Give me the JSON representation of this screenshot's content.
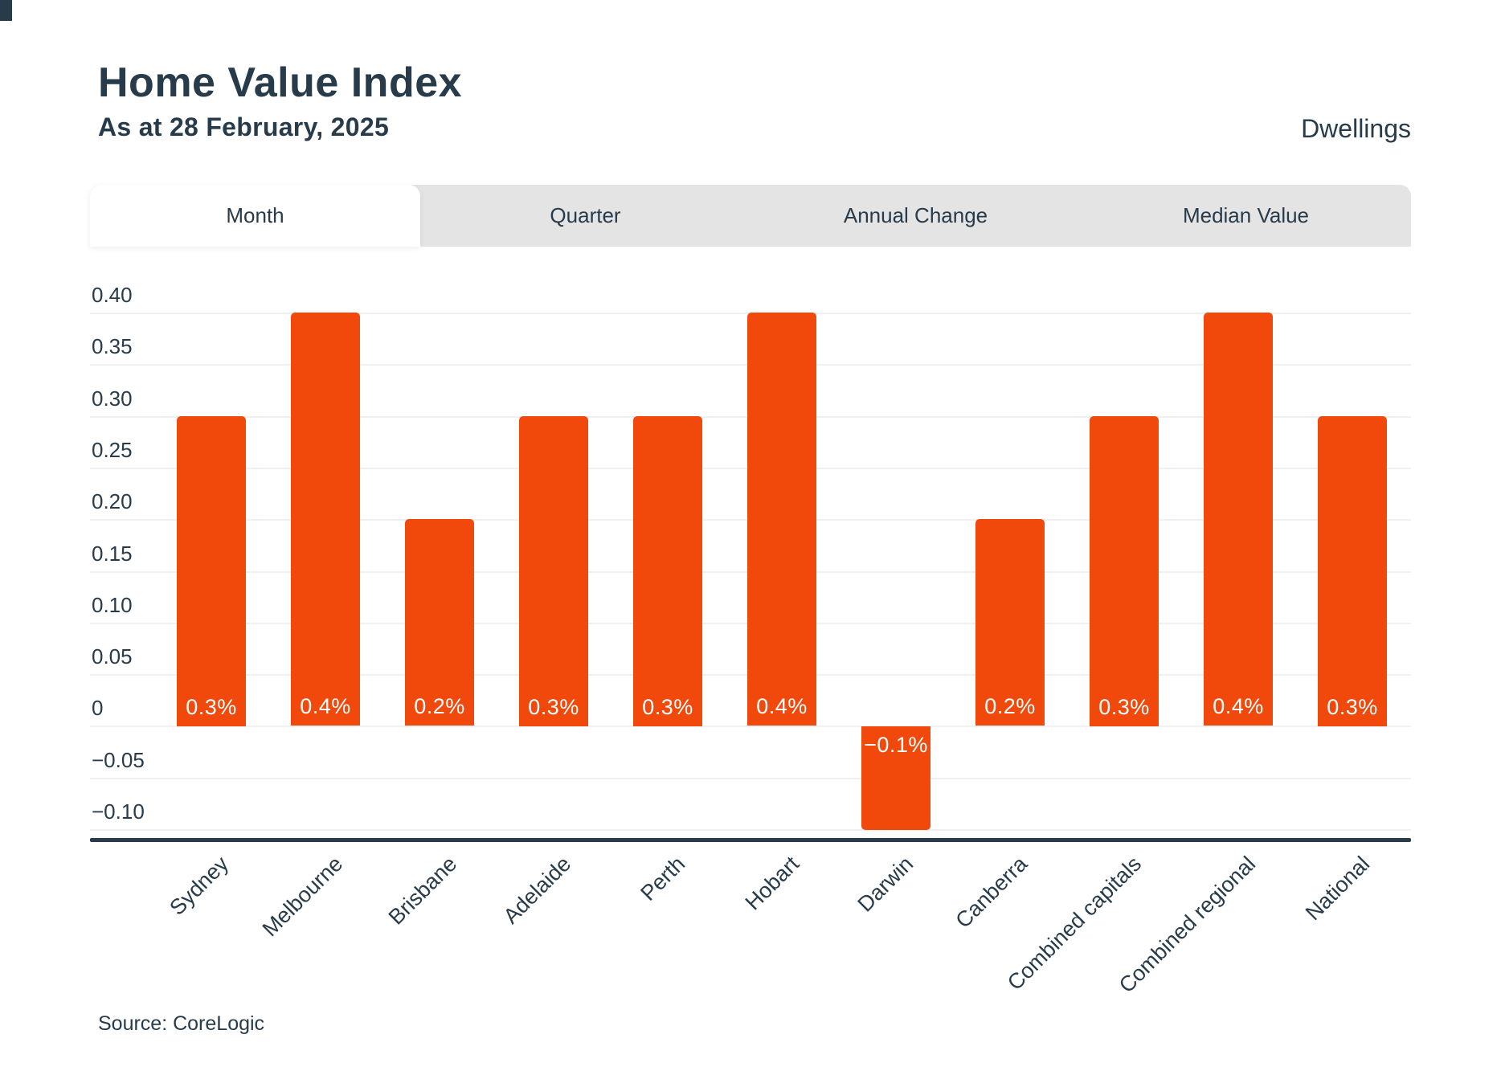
{
  "page": {
    "title": "Home Value Index",
    "subtitle": "As at 28 February, 2025",
    "right_label": "Dwellings",
    "source": "Source: CoreLogic"
  },
  "tabs": [
    {
      "label": "Month",
      "active": true
    },
    {
      "label": "Quarter",
      "active": false
    },
    {
      "label": "Annual Change",
      "active": false
    },
    {
      "label": "Median Value",
      "active": false
    }
  ],
  "colors": {
    "accent": "#F1490B",
    "text": "#273B4A",
    "tab_bg": "#E4E4E4",
    "gridline": "#F0F0F0",
    "axis": "#273B4A",
    "bar_label": "#FFFFFF"
  },
  "chart_data": {
    "type": "bar",
    "title": "Home Value Index",
    "subtitle": "As at 28 February, 2025",
    "series_name": "Dwellings — monthly change (%)",
    "categories": [
      "Sydney",
      "Melbourne",
      "Brisbane",
      "Adelaide",
      "Perth",
      "Hobart",
      "Darwin",
      "Canberra",
      "Combined capitals",
      "Combined regional",
      "National"
    ],
    "values": [
      0.3,
      0.4,
      0.2,
      0.3,
      0.3,
      0.4,
      -0.1,
      0.2,
      0.3,
      0.4,
      0.3
    ],
    "bar_labels": [
      "0.3%",
      "0.4%",
      "0.2%",
      "0.3%",
      "0.3%",
      "0.4%",
      "−0.1%",
      "0.2%",
      "0.3%",
      "0.4%",
      "0.3%"
    ],
    "yticks": [
      0.4,
      0.35,
      0.3,
      0.25,
      0.2,
      0.15,
      0.1,
      0.05,
      0,
      -0.05,
      -0.1
    ],
    "ytick_labels": [
      "0.40",
      "0.35",
      "0.30",
      "0.25",
      "0.20",
      "0.15",
      "0.10",
      "0.05",
      "0",
      "−0.05",
      "−0.10"
    ],
    "ylim": [
      -0.1,
      0.4
    ],
    "xlabel": "",
    "ylabel": "",
    "grid": true,
    "legend": "none",
    "source": "Source: CoreLogic"
  }
}
